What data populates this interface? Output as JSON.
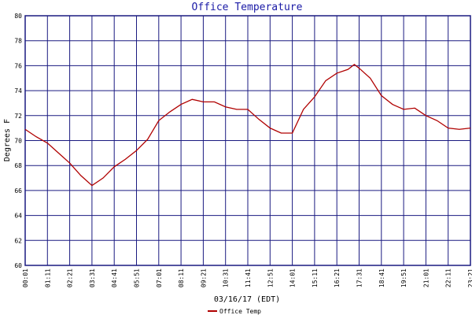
{
  "chart_data": {
    "type": "line",
    "title": "Office Temperature",
    "x_label": "03/16/17 (EDT)",
    "y_label": "Degrees F",
    "x": [
      0,
      35,
      70,
      105,
      140,
      175,
      210,
      245,
      280,
      315,
      350,
      385,
      420,
      455,
      490,
      525,
      560,
      595,
      630,
      665,
      700,
      735,
      770,
      805,
      840,
      875,
      910,
      945,
      980,
      1015,
      1035,
      1050,
      1085,
      1120,
      1155,
      1190,
      1225,
      1260,
      1295,
      1330,
      1365,
      1400
    ],
    "series": [
      {
        "name": "Office Temp",
        "color": "#b00000",
        "values": [
          70.9,
          70.3,
          69.8,
          69.0,
          68.2,
          67.2,
          66.4,
          67.0,
          67.9,
          68.5,
          69.2,
          70.1,
          71.6,
          72.3,
          72.9,
          73.3,
          73.1,
          73.1,
          72.7,
          72.5,
          72.5,
          71.7,
          71.0,
          70.6,
          70.6,
          72.5,
          73.5,
          74.8,
          75.4,
          75.7,
          76.1,
          75.8,
          75.0,
          73.6,
          72.9,
          72.5,
          72.6,
          72.0,
          71.6,
          71.0,
          70.9,
          71.0
        ]
      }
    ],
    "xlim": [
      0,
      1400
    ],
    "ylim": [
      60,
      80
    ],
    "xticks": [
      {
        "value": 0,
        "label": "00:01"
      },
      {
        "value": 70,
        "label": "01:11"
      },
      {
        "value": 140,
        "label": "02:21"
      },
      {
        "value": 210,
        "label": "03:31"
      },
      {
        "value": 280,
        "label": "04:41"
      },
      {
        "value": 350,
        "label": "05:51"
      },
      {
        "value": 420,
        "label": "07:01"
      },
      {
        "value": 490,
        "label": "08:11"
      },
      {
        "value": 560,
        "label": "09:21"
      },
      {
        "value": 630,
        "label": "10:31"
      },
      {
        "value": 700,
        "label": "11:41"
      },
      {
        "value": 770,
        "label": "12:51"
      },
      {
        "value": 840,
        "label": "14:01"
      },
      {
        "value": 910,
        "label": "15:11"
      },
      {
        "value": 980,
        "label": "16:21"
      },
      {
        "value": 1050,
        "label": "17:31"
      },
      {
        "value": 1120,
        "label": "18:41"
      },
      {
        "value": 1190,
        "label": "19:51"
      },
      {
        "value": 1260,
        "label": "21:01"
      },
      {
        "value": 1330,
        "label": "22:11"
      },
      {
        "value": 1400,
        "label": "23:21"
      }
    ],
    "yticks": [
      60,
      62,
      64,
      66,
      68,
      70,
      72,
      74,
      76,
      78,
      80
    ],
    "grid": true,
    "legend": "bottom"
  }
}
